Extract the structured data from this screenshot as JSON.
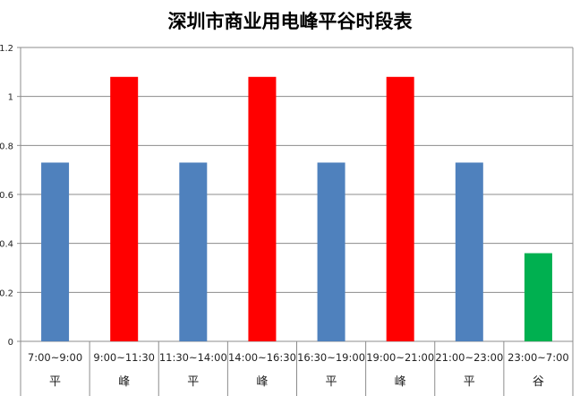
{
  "chart_data": {
    "type": "bar",
    "title": "深圳市商业用电峰平谷时段表",
    "categories": [
      "7:00~9:00",
      "9:00~11:30",
      "11:30~14:00",
      "14:00~16:30",
      "16:30~19:00",
      "19:00~21:00",
      "21:00~23:00",
      "23:00~7:00"
    ],
    "category_groups": [
      "平",
      "峰",
      "平",
      "峰",
      "平",
      "峰",
      "平",
      "谷"
    ],
    "values": [
      0.73,
      1.08,
      0.73,
      1.08,
      0.73,
      1.08,
      0.73,
      0.36
    ],
    "colors": [
      "#4f81bd",
      "#ff0000",
      "#4f81bd",
      "#ff0000",
      "#4f81bd",
      "#ff0000",
      "#4f81bd",
      "#00b050"
    ],
    "ylim": [
      0,
      1.2
    ],
    "yticks": [
      "0",
      "0.2",
      "0.4",
      "0.6",
      "0.8",
      "1",
      "1.2"
    ],
    "grid": true,
    "xlabel": "",
    "ylabel": ""
  }
}
